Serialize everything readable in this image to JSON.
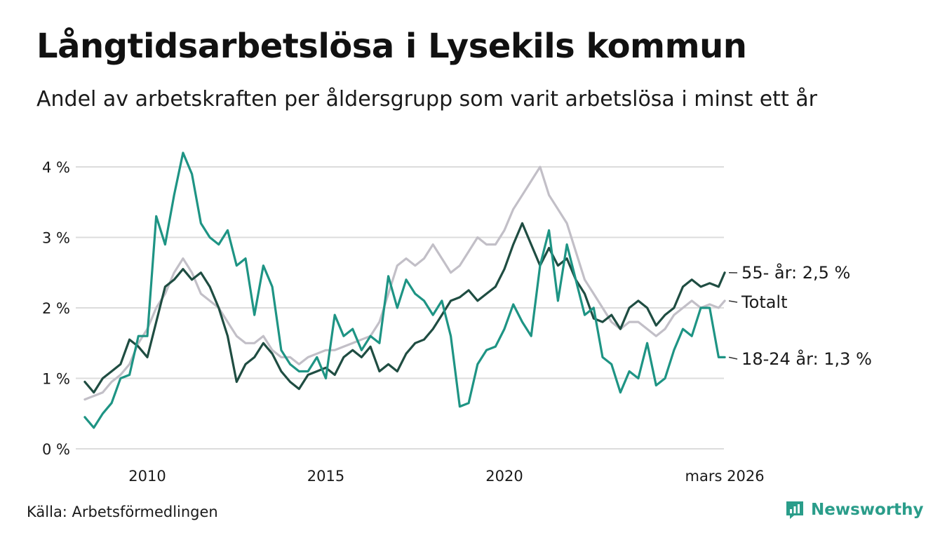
{
  "title": "Långtidsarbetslösa i Lysekils kommun",
  "subtitle": "Andel av arbetskraften per åldersgrupp som varit arbetslösa i minst ett år",
  "source": "Källa: Arbetsförmedlingen",
  "brand": {
    "name": "Newsworthy",
    "icon": "newsworthy-logo-icon",
    "color": "#2a9d8a"
  },
  "chart_data": {
    "type": "line",
    "title": "Långtidsarbetslösa i Lysekils kommun",
    "xlabel": "",
    "ylabel": "",
    "xlim": [
      2008.25,
      2026.2
    ],
    "ylim": [
      0,
      4.3
    ],
    "yticks": [
      0,
      1,
      2,
      3,
      4
    ],
    "ytick_labels": [
      "0 %",
      "1 %",
      "2 %",
      "3 %",
      "4 %"
    ],
    "xticks": [
      2010,
      2015,
      2020,
      2026.17
    ],
    "xtick_labels": [
      "2010",
      "2015",
      "2020",
      "mars 2026"
    ],
    "grid": true,
    "series": [
      {
        "name": "Totalt",
        "end_label": "Totalt",
        "color": "#c2bfc7",
        "x": [
          2008.25,
          2008.5,
          2008.75,
          2009.0,
          2009.25,
          2009.5,
          2009.75,
          2010.0,
          2010.25,
          2010.5,
          2010.75,
          2011.0,
          2011.25,
          2011.5,
          2011.75,
          2012.0,
          2012.25,
          2012.5,
          2012.75,
          2013.0,
          2013.25,
          2013.5,
          2013.75,
          2014.0,
          2014.25,
          2014.5,
          2014.75,
          2015.0,
          2015.25,
          2015.5,
          2015.75,
          2016.0,
          2016.25,
          2016.5,
          2016.75,
          2017.0,
          2017.25,
          2017.5,
          2017.75,
          2018.0,
          2018.25,
          2018.5,
          2018.75,
          2019.0,
          2019.25,
          2019.5,
          2019.75,
          2020.0,
          2020.25,
          2020.5,
          2020.75,
          2021.0,
          2021.25,
          2021.5,
          2021.75,
          2022.0,
          2022.25,
          2022.5,
          2022.75,
          2023.0,
          2023.25,
          2023.5,
          2023.75,
          2024.0,
          2024.25,
          2024.5,
          2024.75,
          2025.0,
          2025.25,
          2025.5,
          2025.75,
          2026.0,
          2026.17
        ],
        "values": [
          0.7,
          0.75,
          0.8,
          0.95,
          1.05,
          1.2,
          1.5,
          1.7,
          2.0,
          2.2,
          2.5,
          2.7,
          2.5,
          2.2,
          2.1,
          2.0,
          1.8,
          1.6,
          1.5,
          1.5,
          1.6,
          1.4,
          1.3,
          1.3,
          1.2,
          1.3,
          1.35,
          1.4,
          1.4,
          1.45,
          1.5,
          1.55,
          1.6,
          1.8,
          2.2,
          2.6,
          2.7,
          2.6,
          2.7,
          2.9,
          2.7,
          2.5,
          2.6,
          2.8,
          3.0,
          2.9,
          2.9,
          3.1,
          3.4,
          3.6,
          3.8,
          4.0,
          3.6,
          3.4,
          3.2,
          2.8,
          2.4,
          2.2,
          2.0,
          1.8,
          1.7,
          1.8,
          1.8,
          1.7,
          1.6,
          1.7,
          1.9,
          2.0,
          2.1,
          2.0,
          2.05,
          2.0,
          2.1
        ]
      },
      {
        "name": "55- år",
        "end_label": "55- år: 2,5 %",
        "color": "#1f4d42",
        "x": [
          2008.25,
          2008.5,
          2008.75,
          2009.0,
          2009.25,
          2009.5,
          2009.75,
          2010.0,
          2010.25,
          2010.5,
          2010.75,
          2011.0,
          2011.25,
          2011.5,
          2011.75,
          2012.0,
          2012.25,
          2012.5,
          2012.75,
          2013.0,
          2013.25,
          2013.5,
          2013.75,
          2014.0,
          2014.25,
          2014.5,
          2014.75,
          2015.0,
          2015.25,
          2015.5,
          2015.75,
          2016.0,
          2016.25,
          2016.5,
          2016.75,
          2017.0,
          2017.25,
          2017.5,
          2017.75,
          2018.0,
          2018.25,
          2018.5,
          2018.75,
          2019.0,
          2019.25,
          2019.5,
          2019.75,
          2020.0,
          2020.25,
          2020.5,
          2020.75,
          2021.0,
          2021.25,
          2021.5,
          2021.75,
          2022.0,
          2022.25,
          2022.5,
          2022.75,
          2023.0,
          2023.25,
          2023.5,
          2023.75,
          2024.0,
          2024.25,
          2024.5,
          2024.75,
          2025.0,
          2025.25,
          2025.5,
          2025.75,
          2026.0,
          2026.17
        ],
        "values": [
          0.95,
          0.8,
          1.0,
          1.1,
          1.2,
          1.55,
          1.45,
          1.3,
          1.8,
          2.3,
          2.4,
          2.55,
          2.4,
          2.5,
          2.3,
          2.0,
          1.6,
          0.95,
          1.2,
          1.3,
          1.5,
          1.35,
          1.1,
          0.95,
          0.85,
          1.05,
          1.1,
          1.15,
          1.05,
          1.3,
          1.4,
          1.3,
          1.45,
          1.1,
          1.2,
          1.1,
          1.35,
          1.5,
          1.55,
          1.7,
          1.9,
          2.1,
          2.15,
          2.25,
          2.1,
          2.2,
          2.3,
          2.55,
          2.9,
          3.2,
          2.9,
          2.6,
          2.85,
          2.6,
          2.7,
          2.4,
          2.2,
          1.85,
          1.8,
          1.9,
          1.7,
          2.0,
          2.1,
          2.0,
          1.75,
          1.9,
          2.0,
          2.3,
          2.4,
          2.3,
          2.35,
          2.3,
          2.5
        ]
      },
      {
        "name": "18-24 år",
        "end_label": "18-24 år: 1,3 %",
        "color": "#1e9484",
        "x": [
          2008.25,
          2008.5,
          2008.75,
          2009.0,
          2009.25,
          2009.5,
          2009.75,
          2010.0,
          2010.25,
          2010.5,
          2010.75,
          2011.0,
          2011.25,
          2011.5,
          2011.75,
          2012.0,
          2012.25,
          2012.5,
          2012.75,
          2013.0,
          2013.25,
          2013.5,
          2013.75,
          2014.0,
          2014.25,
          2014.5,
          2014.75,
          2015.0,
          2015.25,
          2015.5,
          2015.75,
          2016.0,
          2016.25,
          2016.5,
          2016.75,
          2017.0,
          2017.25,
          2017.5,
          2017.75,
          2018.0,
          2018.25,
          2018.5,
          2018.75,
          2019.0,
          2019.25,
          2019.5,
          2019.75,
          2020.0,
          2020.25,
          2020.5,
          2020.75,
          2021.0,
          2021.25,
          2021.5,
          2021.75,
          2022.0,
          2022.25,
          2022.5,
          2022.75,
          2023.0,
          2023.25,
          2023.5,
          2023.75,
          2024.0,
          2024.25,
          2024.5,
          2024.75,
          2025.0,
          2025.25,
          2025.5,
          2025.75,
          2026.0,
          2026.17
        ],
        "values": [
          0.45,
          0.3,
          0.5,
          0.65,
          1.0,
          1.05,
          1.6,
          1.6,
          3.3,
          2.9,
          3.6,
          4.2,
          3.9,
          3.2,
          3.0,
          2.9,
          3.1,
          2.6,
          2.7,
          1.9,
          2.6,
          2.3,
          1.4,
          1.2,
          1.1,
          1.1,
          1.3,
          1.0,
          1.9,
          1.6,
          1.7,
          1.4,
          1.6,
          1.5,
          2.45,
          2.0,
          2.4,
          2.2,
          2.1,
          1.9,
          2.1,
          1.6,
          0.6,
          0.65,
          1.2,
          1.4,
          1.45,
          1.7,
          2.05,
          1.8,
          1.6,
          2.6,
          3.1,
          2.1,
          2.9,
          2.4,
          1.9,
          2.0,
          1.3,
          1.2,
          0.8,
          1.1,
          1.0,
          1.5,
          0.9,
          1.0,
          1.4,
          1.7,
          1.6,
          2.0,
          2.0,
          1.3,
          1.3
        ]
      }
    ]
  }
}
